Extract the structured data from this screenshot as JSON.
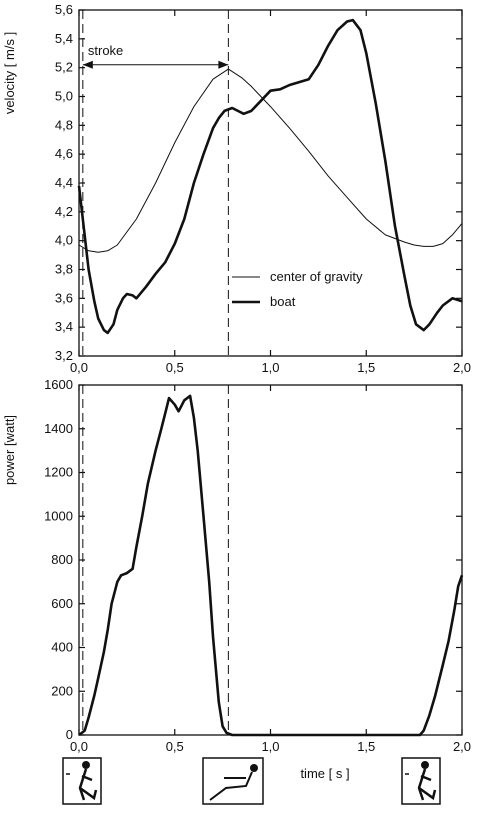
{
  "chart_data": [
    {
      "type": "line",
      "title": "",
      "xlabel": "",
      "ylabel": "velocity  [ m/s ]",
      "xlim": [
        0,
        2
      ],
      "ylim": [
        3.2,
        5.6
      ],
      "x_ticks": [
        0,
        0.5,
        1.0,
        1.5,
        2.0
      ],
      "x_tick_labels": [
        "0,0",
        "0,5",
        "1,0",
        "1,5",
        "2,0"
      ],
      "y_ticks": [
        3.2,
        3.4,
        3.6,
        3.8,
        4.0,
        4.2,
        4.4,
        4.6,
        4.8,
        5.0,
        5.2,
        5.4,
        5.6
      ],
      "y_tick_labels": [
        "3,2",
        "3,4",
        "3,6",
        "3,8",
        "4,0",
        "4,2",
        "4,4",
        "4,6",
        "4,8",
        "5,0",
        "5,2",
        "5,4",
        "5,6"
      ],
      "grid": false,
      "legend": "center-right",
      "annotation": {
        "text": "stroke",
        "x_start": 0.02,
        "x_end": 0.78,
        "y": 5.22
      },
      "stroke_markers_x": [
        0.02,
        0.78
      ],
      "series": [
        {
          "name": "center of gravity",
          "style": "thin",
          "x": [
            0.0,
            0.05,
            0.1,
            0.15,
            0.2,
            0.3,
            0.4,
            0.5,
            0.6,
            0.7,
            0.78,
            0.85,
            0.9,
            1.0,
            1.1,
            1.2,
            1.3,
            1.4,
            1.5,
            1.6,
            1.7,
            1.75,
            1.8,
            1.85,
            1.9,
            1.95,
            2.0
          ],
          "y": [
            3.97,
            3.93,
            3.92,
            3.93,
            3.97,
            4.15,
            4.4,
            4.68,
            4.93,
            5.12,
            5.19,
            5.13,
            5.07,
            4.93,
            4.78,
            4.62,
            4.45,
            4.3,
            4.15,
            4.04,
            3.99,
            3.97,
            3.96,
            3.96,
            3.98,
            4.04,
            4.12
          ]
        },
        {
          "name": "boat",
          "style": "thick",
          "x": [
            0.0,
            0.02,
            0.05,
            0.08,
            0.1,
            0.13,
            0.15,
            0.18,
            0.2,
            0.23,
            0.25,
            0.28,
            0.3,
            0.35,
            0.4,
            0.45,
            0.5,
            0.55,
            0.6,
            0.65,
            0.7,
            0.73,
            0.76,
            0.8,
            0.83,
            0.86,
            0.9,
            0.95,
            1.0,
            1.05,
            1.1,
            1.15,
            1.2,
            1.25,
            1.3,
            1.35,
            1.4,
            1.43,
            1.47,
            1.5,
            1.55,
            1.6,
            1.65,
            1.7,
            1.73,
            1.76,
            1.8,
            1.83,
            1.87,
            1.9,
            1.95,
            2.0
          ],
          "y": [
            4.38,
            4.15,
            3.8,
            3.58,
            3.46,
            3.38,
            3.36,
            3.42,
            3.52,
            3.6,
            3.63,
            3.62,
            3.6,
            3.68,
            3.77,
            3.85,
            3.98,
            4.15,
            4.4,
            4.6,
            4.78,
            4.85,
            4.9,
            4.92,
            4.9,
            4.88,
            4.9,
            4.97,
            5.04,
            5.05,
            5.08,
            5.1,
            5.12,
            5.22,
            5.35,
            5.46,
            5.52,
            5.53,
            5.46,
            5.3,
            4.95,
            4.55,
            4.1,
            3.75,
            3.55,
            3.42,
            3.38,
            3.42,
            3.5,
            3.55,
            3.6,
            3.58
          ]
        }
      ]
    },
    {
      "type": "line",
      "title": "",
      "xlabel": "time [ s ]",
      "ylabel": "power [watt]",
      "xlim": [
        0,
        2
      ],
      "ylim": [
        0,
        1600
      ],
      "x_ticks": [
        0,
        0.5,
        1.0,
        1.5,
        2.0
      ],
      "x_tick_labels": [
        "0,0",
        "0,5",
        "1,0",
        "1,5",
        "2,0"
      ],
      "y_ticks": [
        0,
        200,
        400,
        600,
        800,
        1000,
        1200,
        1400,
        1600
      ],
      "y_tick_labels": [
        "0",
        "200",
        "400",
        "600",
        "800",
        "1000",
        "1200",
        "1400",
        "1600"
      ],
      "grid": false,
      "stroke_markers_x": [
        0.02,
        0.78
      ],
      "series": [
        {
          "style": "thick",
          "x": [
            0.0,
            0.03,
            0.05,
            0.08,
            0.1,
            0.13,
            0.15,
            0.17,
            0.2,
            0.22,
            0.25,
            0.28,
            0.3,
            0.33,
            0.36,
            0.4,
            0.43,
            0.45,
            0.47,
            0.5,
            0.52,
            0.55,
            0.58,
            0.6,
            0.62,
            0.65,
            0.68,
            0.7,
            0.73,
            0.75,
            0.77,
            0.8,
            0.85,
            1.0,
            1.5,
            1.78,
            1.8,
            1.83,
            1.86,
            1.9,
            1.93,
            1.96,
            1.98,
            2.0
          ],
          "y": [
            0,
            20,
            80,
            180,
            260,
            380,
            480,
            600,
            700,
            730,
            740,
            760,
            860,
            1000,
            1150,
            1300,
            1400,
            1470,
            1540,
            1510,
            1480,
            1530,
            1550,
            1450,
            1300,
            1000,
            700,
            450,
            150,
            40,
            10,
            0,
            0,
            0,
            0,
            0,
            20,
            90,
            180,
            320,
            430,
            570,
            680,
            730
          ]
        }
      ]
    }
  ]
}
